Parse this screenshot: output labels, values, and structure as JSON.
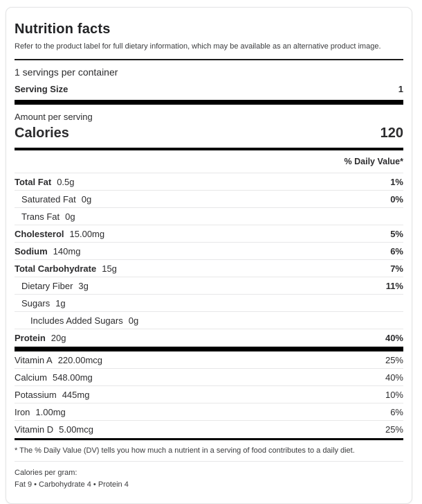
{
  "header": {
    "title": "Nutrition facts",
    "subtitle": "Refer to the product label for full dietary information, which may be available as an alternative product image."
  },
  "servings": {
    "per_container": "1 servings per container",
    "serving_size_label": "Serving Size",
    "serving_size_value": "1"
  },
  "calories": {
    "amount_per_serving_label": "Amount per serving",
    "label": "Calories",
    "value": "120"
  },
  "daily_value_header": "% Daily Value*",
  "nutrients": [
    {
      "name": "Total Fat",
      "amount": "0.5g",
      "dv": "1%"
    },
    {
      "name": "Saturated Fat",
      "amount": "0g",
      "dv": "0%"
    },
    {
      "name": "Trans Fat",
      "amount": "0g",
      "dv": ""
    },
    {
      "name": "Cholesterol",
      "amount": "15.00mg",
      "dv": "5%"
    },
    {
      "name": "Sodium",
      "amount": "140mg",
      "dv": "6%"
    },
    {
      "name": "Total Carbohydrate",
      "amount": "15g",
      "dv": "7%"
    },
    {
      "name": "Dietary Fiber",
      "amount": "3g",
      "dv": "11%"
    },
    {
      "name": "Sugars",
      "amount": "1g",
      "dv": ""
    },
    {
      "name": "Includes Added Sugars",
      "amount": "0g",
      "dv": ""
    },
    {
      "name": "Protein",
      "amount": "20g",
      "dv": "40%"
    }
  ],
  "vitamins": [
    {
      "name": "Vitamin A",
      "amount": "220.00mcg",
      "dv": "25%"
    },
    {
      "name": "Calcium",
      "amount": "548.00mg",
      "dv": "40%"
    },
    {
      "name": "Potassium",
      "amount": "445mg",
      "dv": "10%"
    },
    {
      "name": "Iron",
      "amount": "1.00mg",
      "dv": "6%"
    },
    {
      "name": "Vitamin D",
      "amount": "5.00mcg",
      "dv": "25%"
    }
  ],
  "footnotes": {
    "dv_note": "* The % Daily Value (DV) tells you how much a nutrient in a serving of food contributes to a daily diet.",
    "calories_per_gram_label": "Calories per gram:",
    "calories_per_gram_value": "Fat 9 • Carbohydrate 4 • Protein 4"
  },
  "colors": {
    "text": "#2c2c2e",
    "bar": "#000000",
    "divider": "#e7e7e8",
    "card_border": "#e3e4e5"
  }
}
